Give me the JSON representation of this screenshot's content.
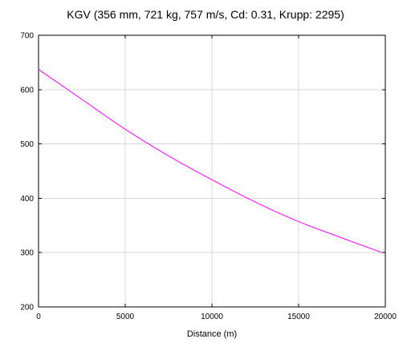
{
  "chart_data": {
    "type": "line",
    "title": "KGV (356 mm, 721 kg, 757 m/s, Cd: 0.31, Krupp: 2295)",
    "xlabel": "Distance (m)",
    "ylabel": "",
    "xlim": [
      0,
      20000
    ],
    "ylim": [
      200,
      700
    ],
    "xticks": [
      0,
      5000,
      10000,
      15000,
      20000
    ],
    "yticks": [
      200,
      300,
      400,
      500,
      600,
      700
    ],
    "grid": true,
    "series": [
      {
        "color": "#ff00ff",
        "x": [
          0,
          2500,
          5000,
          7500,
          10000,
          12500,
          15000,
          17500,
          19800
        ],
        "y": [
          637,
          582,
          527,
          478,
          434,
          393,
          357,
          327,
          300
        ]
      }
    ]
  }
}
